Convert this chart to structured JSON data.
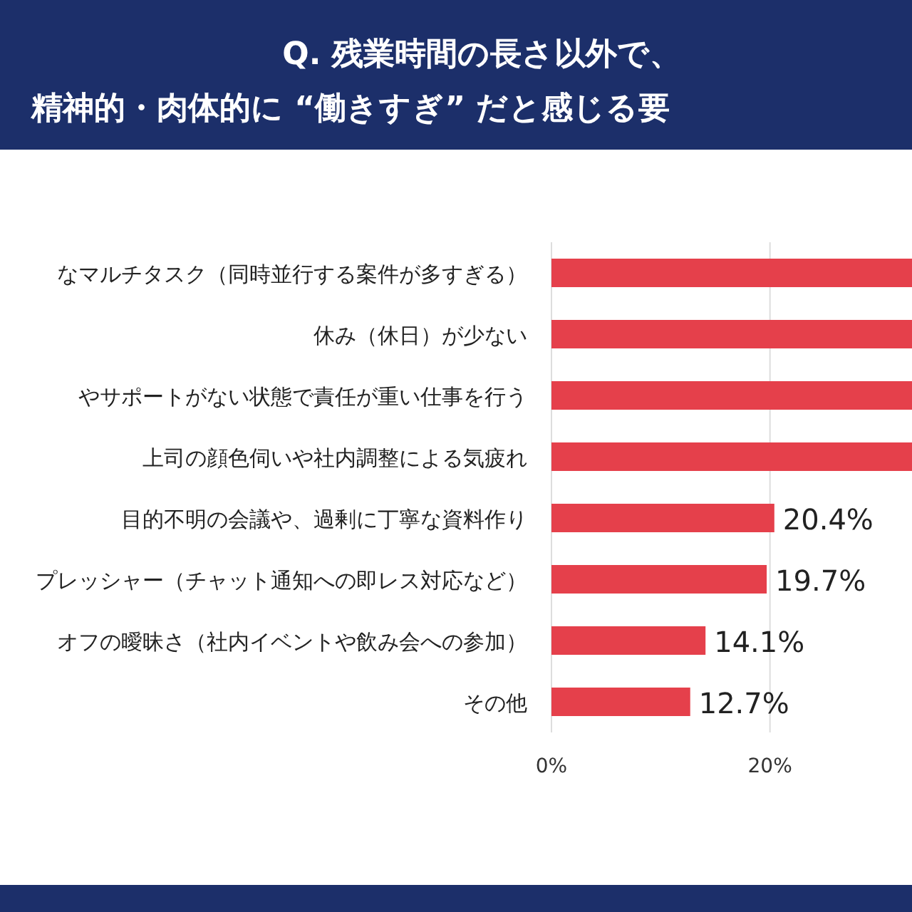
{
  "chart_data": {
    "type": "bar",
    "orientation": "horizontal",
    "title": "Q. 残業時間の長さ以外で、",
    "subtitle": "精神的・肉体的に “働きすぎ” だと感じる要",
    "categories": [
      "なマルチタスク（同時並行する案件が多すぎる）",
      "休み（休日）が少ない",
      "やサポートがない状態で責任が重い仕事を行う",
      "上司の顔色伺いや社内調整による気疲れ",
      "目的不明の会議や、過剰に丁寧な資料作り",
      "プレッシャー（チャット通知への即レス対応など）",
      "オフの曖昧さ（社内イベントや飲み会への参加）",
      "その他"
    ],
    "values": [
      33,
      33,
      33,
      33,
      20.4,
      19.7,
      14.1,
      12.7
    ],
    "value_labels": [
      null,
      null,
      null,
      null,
      "20.4%",
      "19.7%",
      "14.1%",
      "12.7%"
    ],
    "color": "#e5404b",
    "xlim": [
      0,
      33
    ],
    "xticks": [
      {
        "value": 0,
        "label": "0%"
      },
      {
        "value": 20,
        "label": "20%"
      }
    ],
    "grid": "x"
  }
}
